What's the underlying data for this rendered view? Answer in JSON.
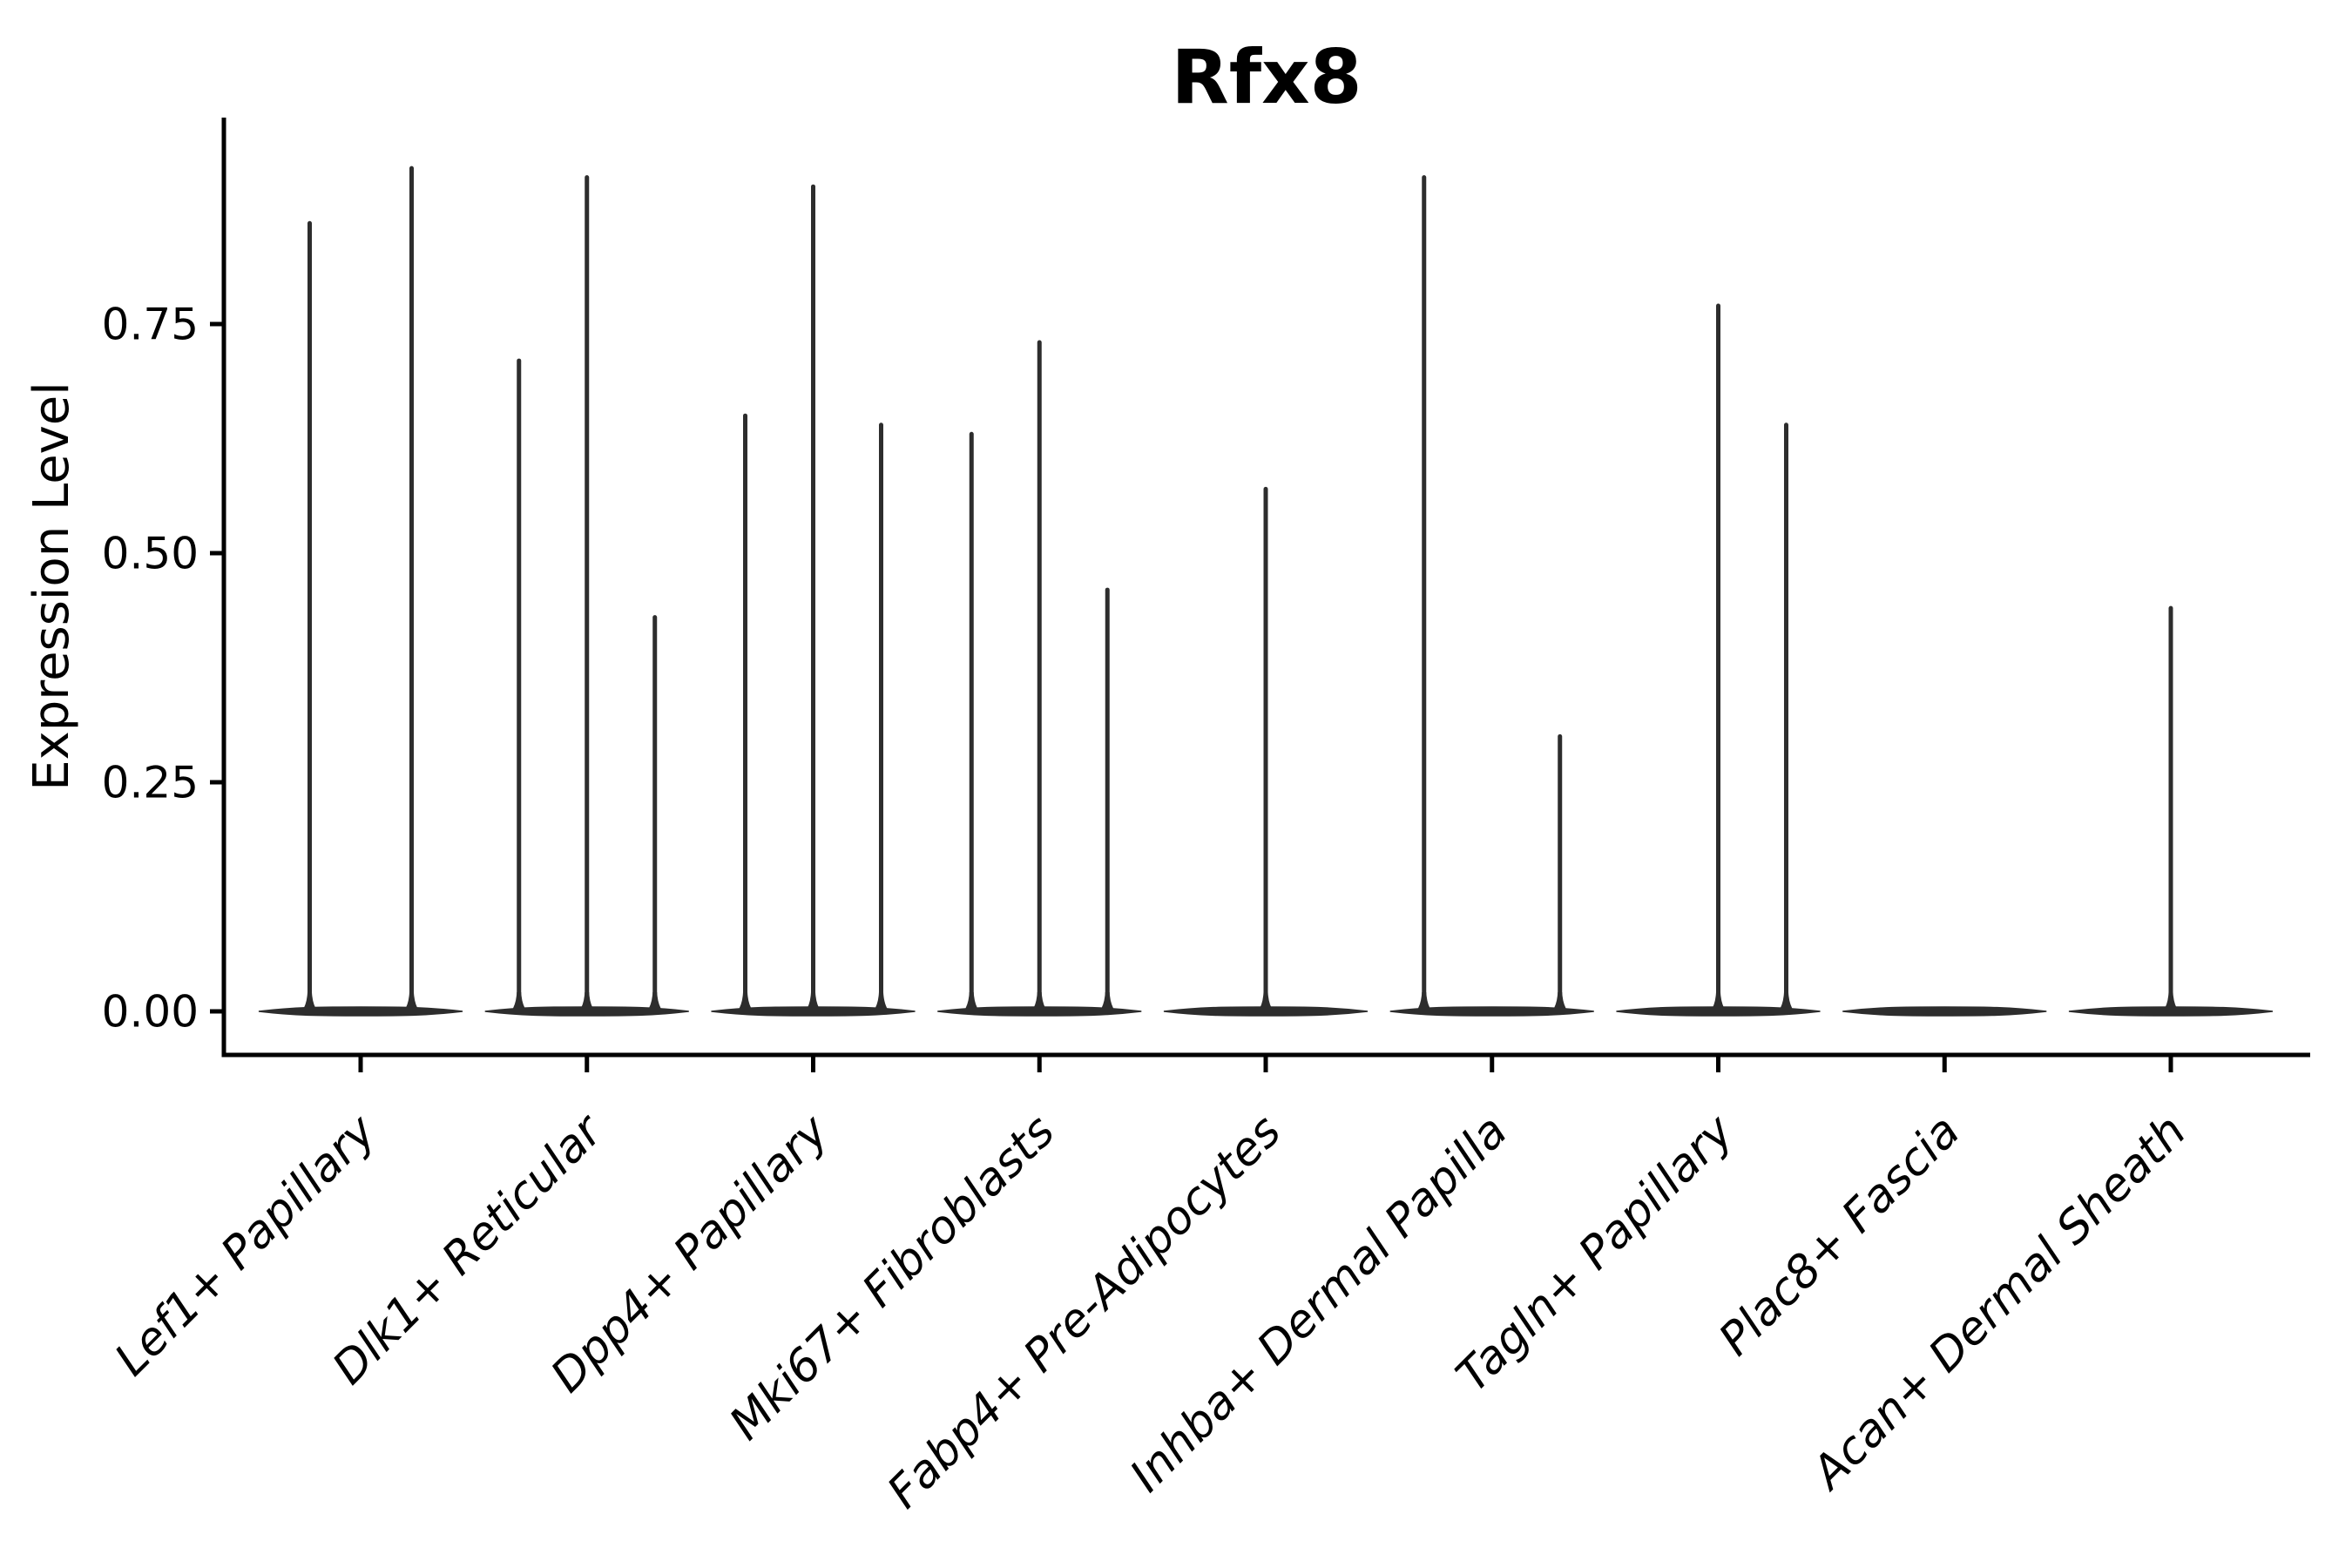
{
  "chart_data": {
    "type": "violin",
    "title": "Rfx8",
    "xlabel": "",
    "ylabel": "Expression Level",
    "ylim": [
      0,
      0.975
    ],
    "grid": false,
    "legend": null,
    "colors": {
      "ink": "#000000",
      "violin": "#2d2d2d",
      "background": "#ffffff"
    },
    "yticks": [
      {
        "label": "0.00",
        "value": 0.0
      },
      {
        "label": "0.25",
        "value": 0.25
      },
      {
        "label": "0.50",
        "value": 0.5
      },
      {
        "label": "0.75",
        "value": 0.75
      }
    ],
    "categories": [
      {
        "label": "Lef1+ Papillary",
        "spikes": [
          {
            "pos": 0.25,
            "value": 0.86
          },
          {
            "pos": 0.75,
            "value": 0.92
          }
        ]
      },
      {
        "label": "Dlk1+ Reticular",
        "spikes": [
          {
            "pos": 0.1667,
            "value": 0.71
          },
          {
            "pos": 0.5,
            "value": 0.91
          },
          {
            "pos": 0.8333,
            "value": 0.43
          }
        ]
      },
      {
        "label": "Dpp4+ Papillary",
        "spikes": [
          {
            "pos": 0.1667,
            "value": 0.65
          },
          {
            "pos": 0.5,
            "value": 0.9
          },
          {
            "pos": 0.8333,
            "value": 0.64
          }
        ]
      },
      {
        "label": "Mki67+ Fibroblasts",
        "spikes": [
          {
            "pos": 0.1667,
            "value": 0.63
          },
          {
            "pos": 0.5,
            "value": 0.73
          },
          {
            "pos": 0.8333,
            "value": 0.46
          }
        ]
      },
      {
        "label": "Fabp4+ Pre-Adipocytes",
        "spikes": [
          {
            "pos": 0.5,
            "value": 0.57
          }
        ]
      },
      {
        "label": "Inhba+ Dermal Papilla",
        "spikes": [
          {
            "pos": 0.1667,
            "value": 0.91
          },
          {
            "pos": 0.8333,
            "value": 0.3
          }
        ]
      },
      {
        "label": "Tagln+ Papillary",
        "spikes": [
          {
            "pos": 0.5,
            "value": 0.77
          },
          {
            "pos": 0.8333,
            "value": 0.64
          }
        ]
      },
      {
        "label": "Plac8+ Fascia",
        "spikes": []
      },
      {
        "label": "Acan+ Dermal Sheath",
        "spikes": [
          {
            "pos": 0.5,
            "value": 0.44
          }
        ]
      }
    ]
  }
}
